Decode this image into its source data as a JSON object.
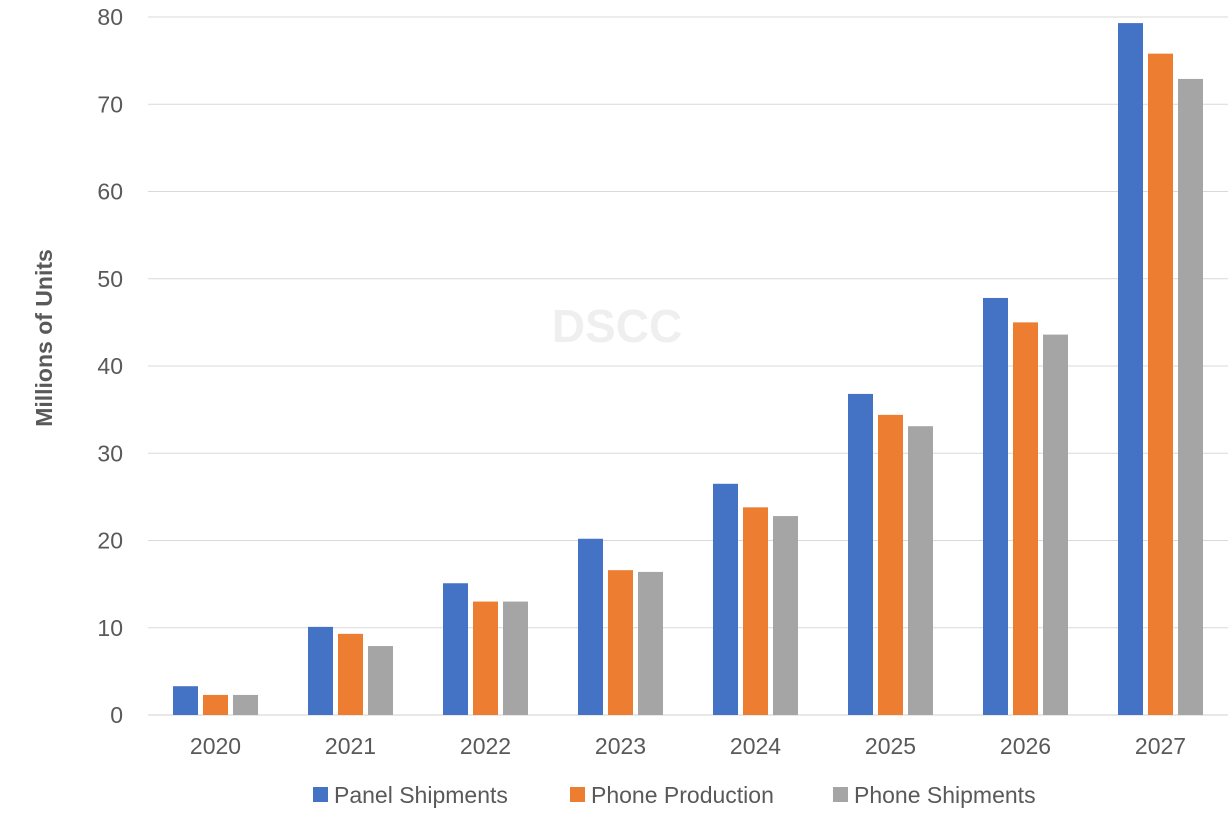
{
  "chart_data": {
    "type": "bar",
    "title": "",
    "xlabel": "",
    "ylabel": "Millions of Units",
    "watermark": "DSCC",
    "ylim": [
      0,
      80
    ],
    "yticks": [
      0,
      10,
      20,
      30,
      40,
      50,
      60,
      70,
      80
    ],
    "grid": true,
    "legend_position": "bottom",
    "categories": [
      "2020",
      "2021",
      "2022",
      "2023",
      "2024",
      "2025",
      "2026",
      "2027"
    ],
    "series": [
      {
        "name": "Panel Shipments",
        "color": "#4472c4",
        "values": [
          3.3,
          10.1,
          15.1,
          20.2,
          26.5,
          36.8,
          47.8,
          79.3
        ]
      },
      {
        "name": "Phone Production",
        "color": "#ed7d31",
        "values": [
          2.3,
          9.3,
          13.0,
          16.6,
          23.8,
          34.4,
          45.0,
          75.8
        ]
      },
      {
        "name": "Phone Shipments",
        "color": "#a5a5a5",
        "values": [
          2.3,
          7.9,
          13.0,
          16.4,
          22.8,
          33.1,
          43.6,
          72.9
        ]
      }
    ]
  }
}
